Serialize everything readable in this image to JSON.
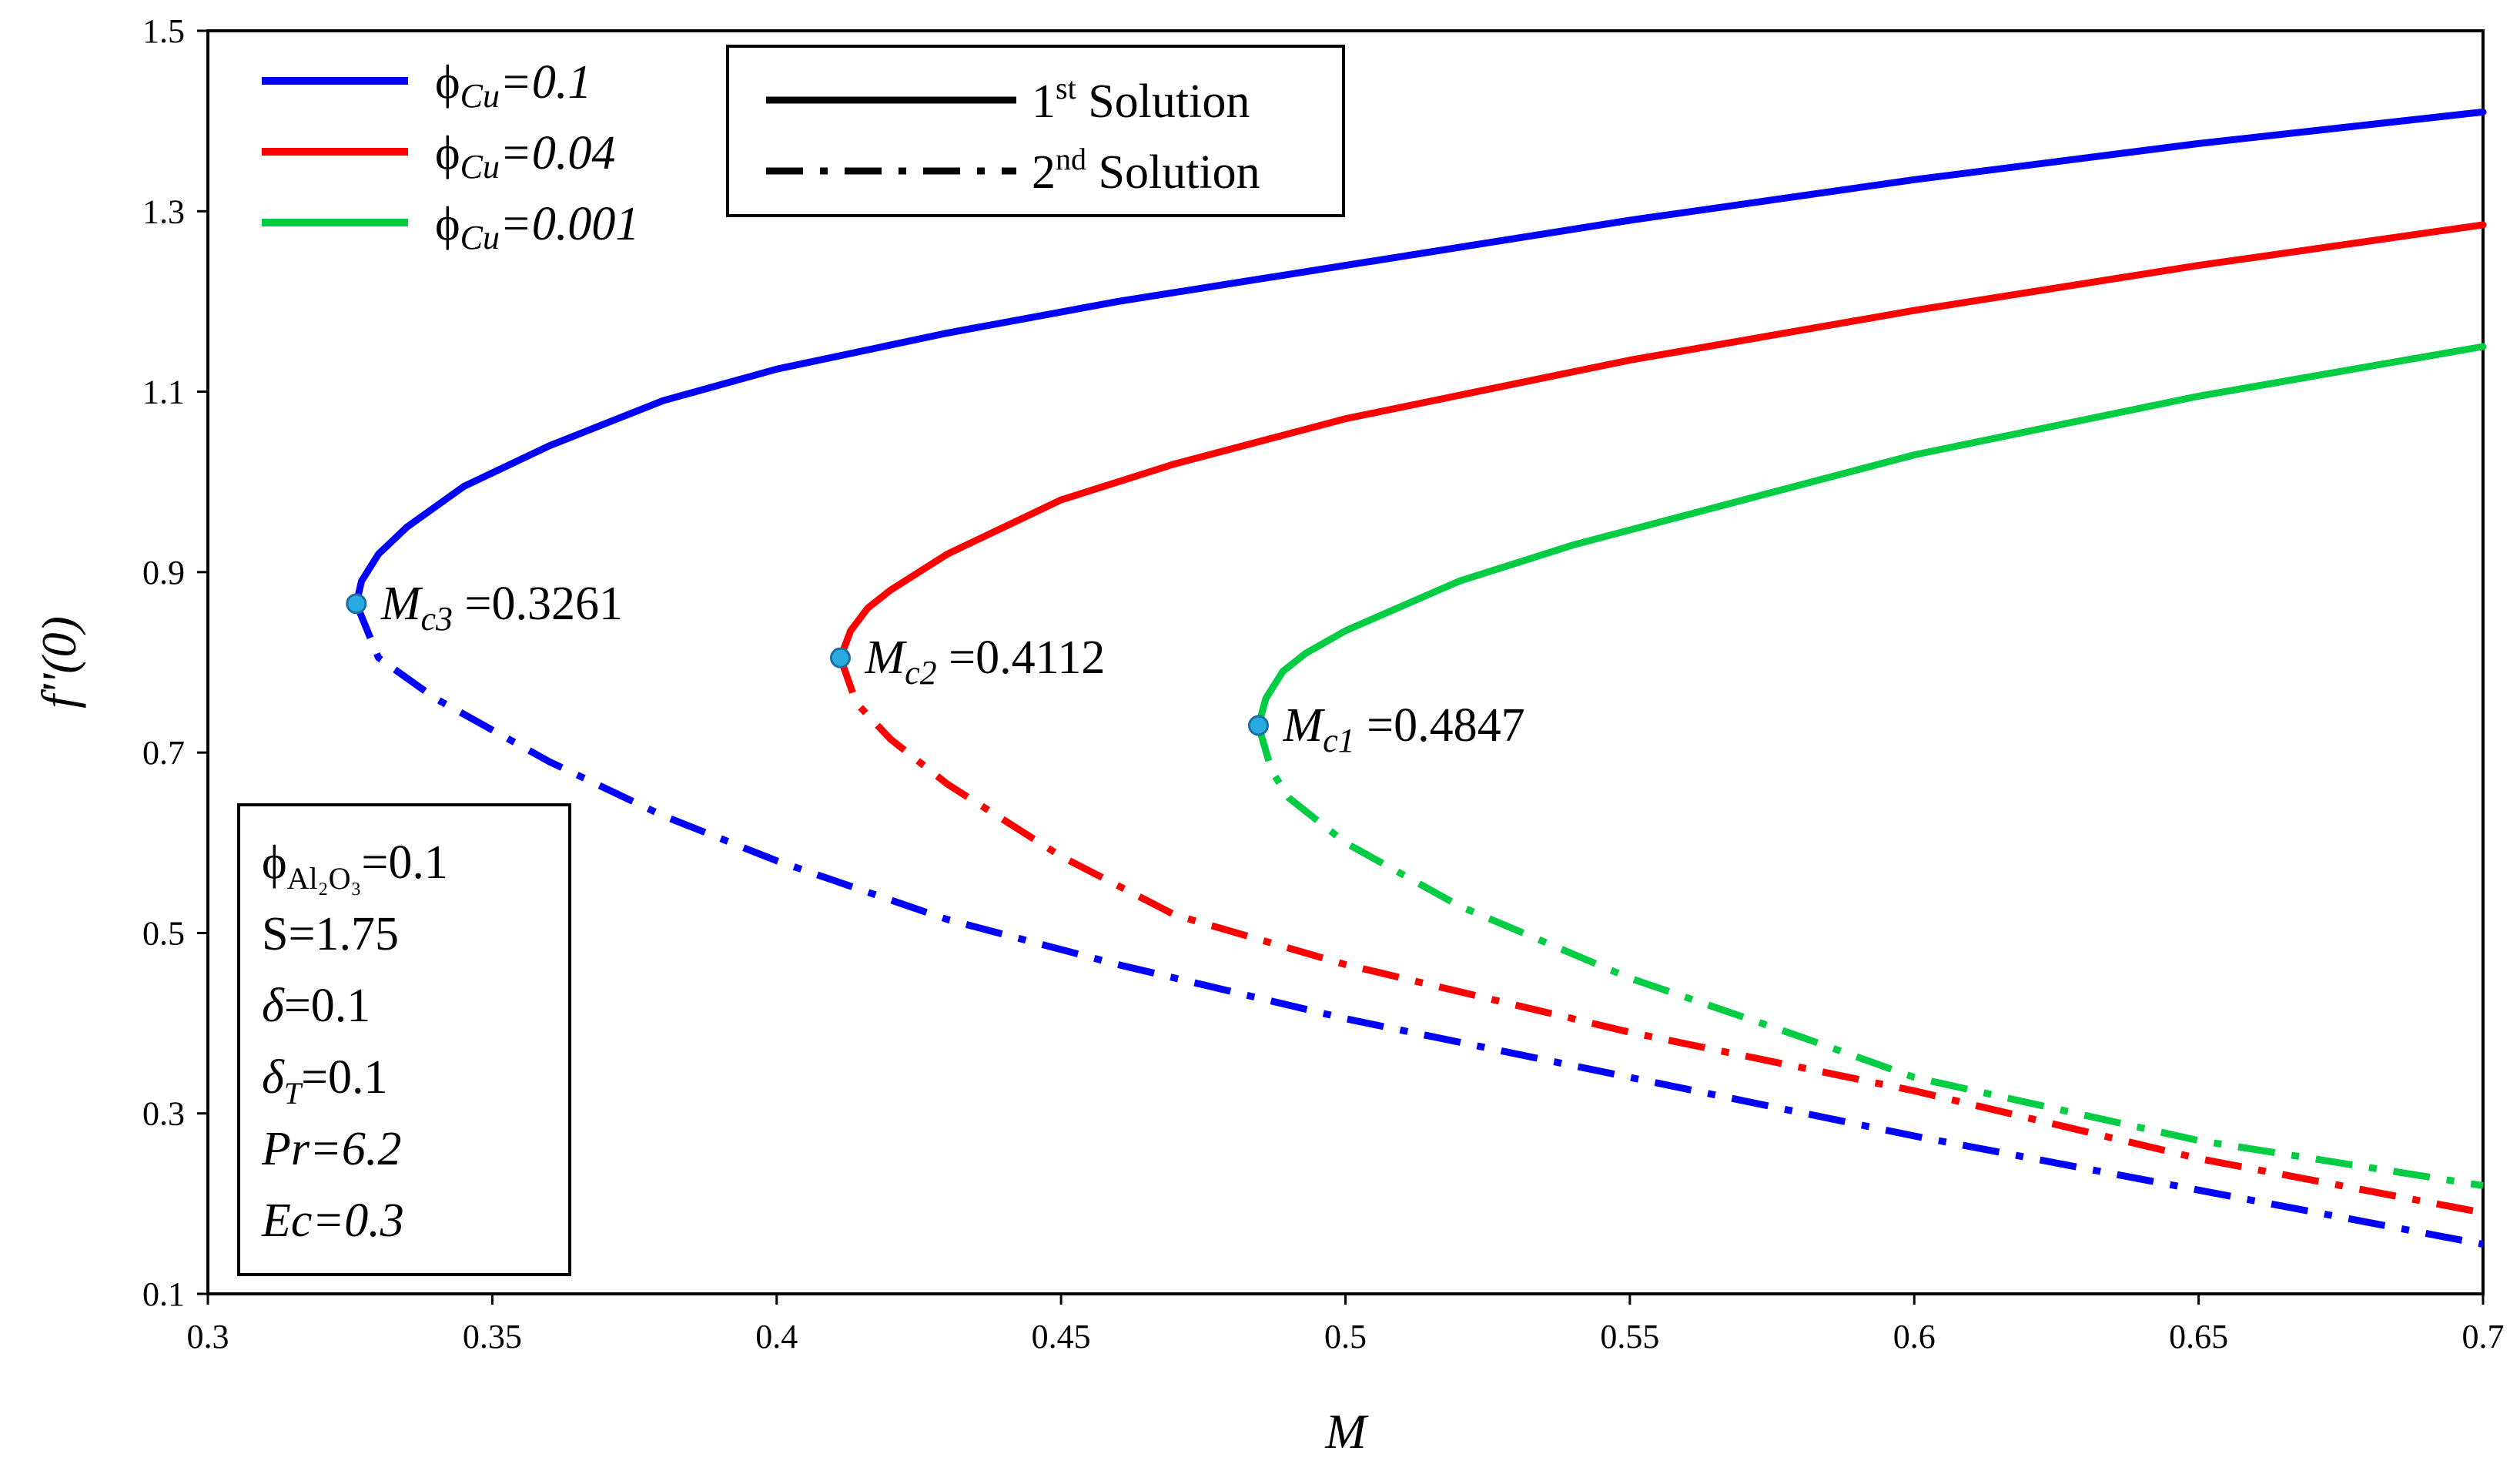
{
  "chart_data": {
    "type": "line",
    "title": "",
    "xlabel": "M",
    "ylabel": "f''(0)",
    "xlim": [
      0.3,
      0.7
    ],
    "ylim": [
      0.1,
      1.5
    ],
    "xticks": [
      "0.3",
      "0.35",
      "0.4",
      "0.45",
      "0.5",
      "0.55",
      "0.6",
      "0.65",
      "0.7"
    ],
    "yticks": [
      "0.1",
      "0.3",
      "0.5",
      "0.7",
      "0.9",
      "1.1",
      "1.3",
      "1.5"
    ],
    "legend_colors": {
      "title": "",
      "position": "top-left",
      "entries": [
        {
          "prefix": "ϕ",
          "sub": "Cu",
          "suffix": "=0.1",
          "color": "#0000ff"
        },
        {
          "prefix": "ϕ",
          "sub": "Cu",
          "suffix": "=0.04",
          "color": "#ff0000"
        },
        {
          "prefix": "ϕ",
          "sub": "Cu",
          "suffix": "=0.001",
          "color": "#00cc44"
        }
      ]
    },
    "legend_styles": {
      "position": "top-center",
      "entries": [
        {
          "num": "1",
          "sup": "st",
          "text": " Solution",
          "style": "solid"
        },
        {
          "num": "2",
          "sup": "nd",
          "text": " Solution",
          "style": "dash-dot"
        }
      ]
    },
    "series": [
      {
        "name": "ϕCu=0.1",
        "color": "#0000ff",
        "critical_point": {
          "x": 0.3261,
          "y": 0.865,
          "label_base": "M",
          "label_sub": "c3",
          "label_value": " =0.3261"
        },
        "first_solution": {
          "x": [
            0.3261,
            0.327,
            0.33,
            0.335,
            0.345,
            0.36,
            0.38,
            0.4,
            0.43,
            0.46,
            0.5,
            0.55,
            0.6,
            0.65,
            0.7
          ],
          "y": [
            0.865,
            0.89,
            0.92,
            0.95,
            0.995,
            1.04,
            1.09,
            1.125,
            1.165,
            1.2,
            1.24,
            1.29,
            1.335,
            1.375,
            1.41
          ]
        },
        "second_solution": {
          "x": [
            0.3261,
            0.33,
            0.34,
            0.36,
            0.38,
            0.4,
            0.43,
            0.46,
            0.5,
            0.55,
            0.6,
            0.65,
            0.7
          ],
          "y": [
            0.865,
            0.805,
            0.76,
            0.69,
            0.63,
            0.58,
            0.515,
            0.465,
            0.405,
            0.34,
            0.275,
            0.215,
            0.155
          ]
        }
      },
      {
        "name": "ϕCu=0.04",
        "color": "#ff0000",
        "critical_point": {
          "x": 0.4112,
          "y": 0.805,
          "label_base": "M",
          "label_sub": "c2",
          "label_value": " =0.4112"
        },
        "first_solution": {
          "x": [
            0.4112,
            0.413,
            0.416,
            0.42,
            0.43,
            0.45,
            0.47,
            0.5,
            0.55,
            0.6,
            0.65,
            0.7
          ],
          "y": [
            0.805,
            0.835,
            0.86,
            0.88,
            0.92,
            0.98,
            1.02,
            1.07,
            1.135,
            1.19,
            1.24,
            1.285
          ]
        },
        "second_solution": {
          "x": [
            0.4112,
            0.414,
            0.42,
            0.43,
            0.45,
            0.47,
            0.5,
            0.55,
            0.6,
            0.65,
            0.7
          ],
          "y": [
            0.805,
            0.755,
            0.715,
            0.665,
            0.585,
            0.52,
            0.465,
            0.39,
            0.325,
            0.25,
            0.19
          ]
        }
      },
      {
        "name": "ϕCu=0.001",
        "color": "#00cc44",
        "critical_point": {
          "x": 0.4847,
          "y": 0.73,
          "label_base": "M",
          "label_sub": "c1",
          "label_value": " =0.4847"
        },
        "first_solution": {
          "x": [
            0.4847,
            0.486,
            0.489,
            0.493,
            0.5,
            0.52,
            0.54,
            0.57,
            0.6,
            0.65,
            0.7
          ],
          "y": [
            0.73,
            0.76,
            0.79,
            0.81,
            0.835,
            0.89,
            0.93,
            0.98,
            1.03,
            1.095,
            1.15
          ]
        },
        "second_solution": {
          "x": [
            0.4847,
            0.487,
            0.49,
            0.5,
            0.52,
            0.55,
            0.58,
            0.6,
            0.65,
            0.7
          ],
          "y": [
            0.73,
            0.68,
            0.65,
            0.6,
            0.53,
            0.45,
            0.385,
            0.34,
            0.27,
            0.22
          ]
        }
      }
    ],
    "parameters": [
      {
        "base": "ϕ",
        "sub": "Al₂O₃",
        "value": "=0.1",
        "italic": false
      },
      {
        "base": "S",
        "sub": "",
        "value": "=1.75",
        "italic": false
      },
      {
        "base": "δ",
        "sub": "",
        "value": "=0.1",
        "italic": true
      },
      {
        "base": "δ",
        "sub": "T",
        "value": "=0.1",
        "italic": true
      },
      {
        "base": "Pr=6.2",
        "sub": "",
        "value": "",
        "italic": true
      },
      {
        "base": "Ec=0.3",
        "sub": "",
        "value": "",
        "italic": true
      }
    ]
  }
}
